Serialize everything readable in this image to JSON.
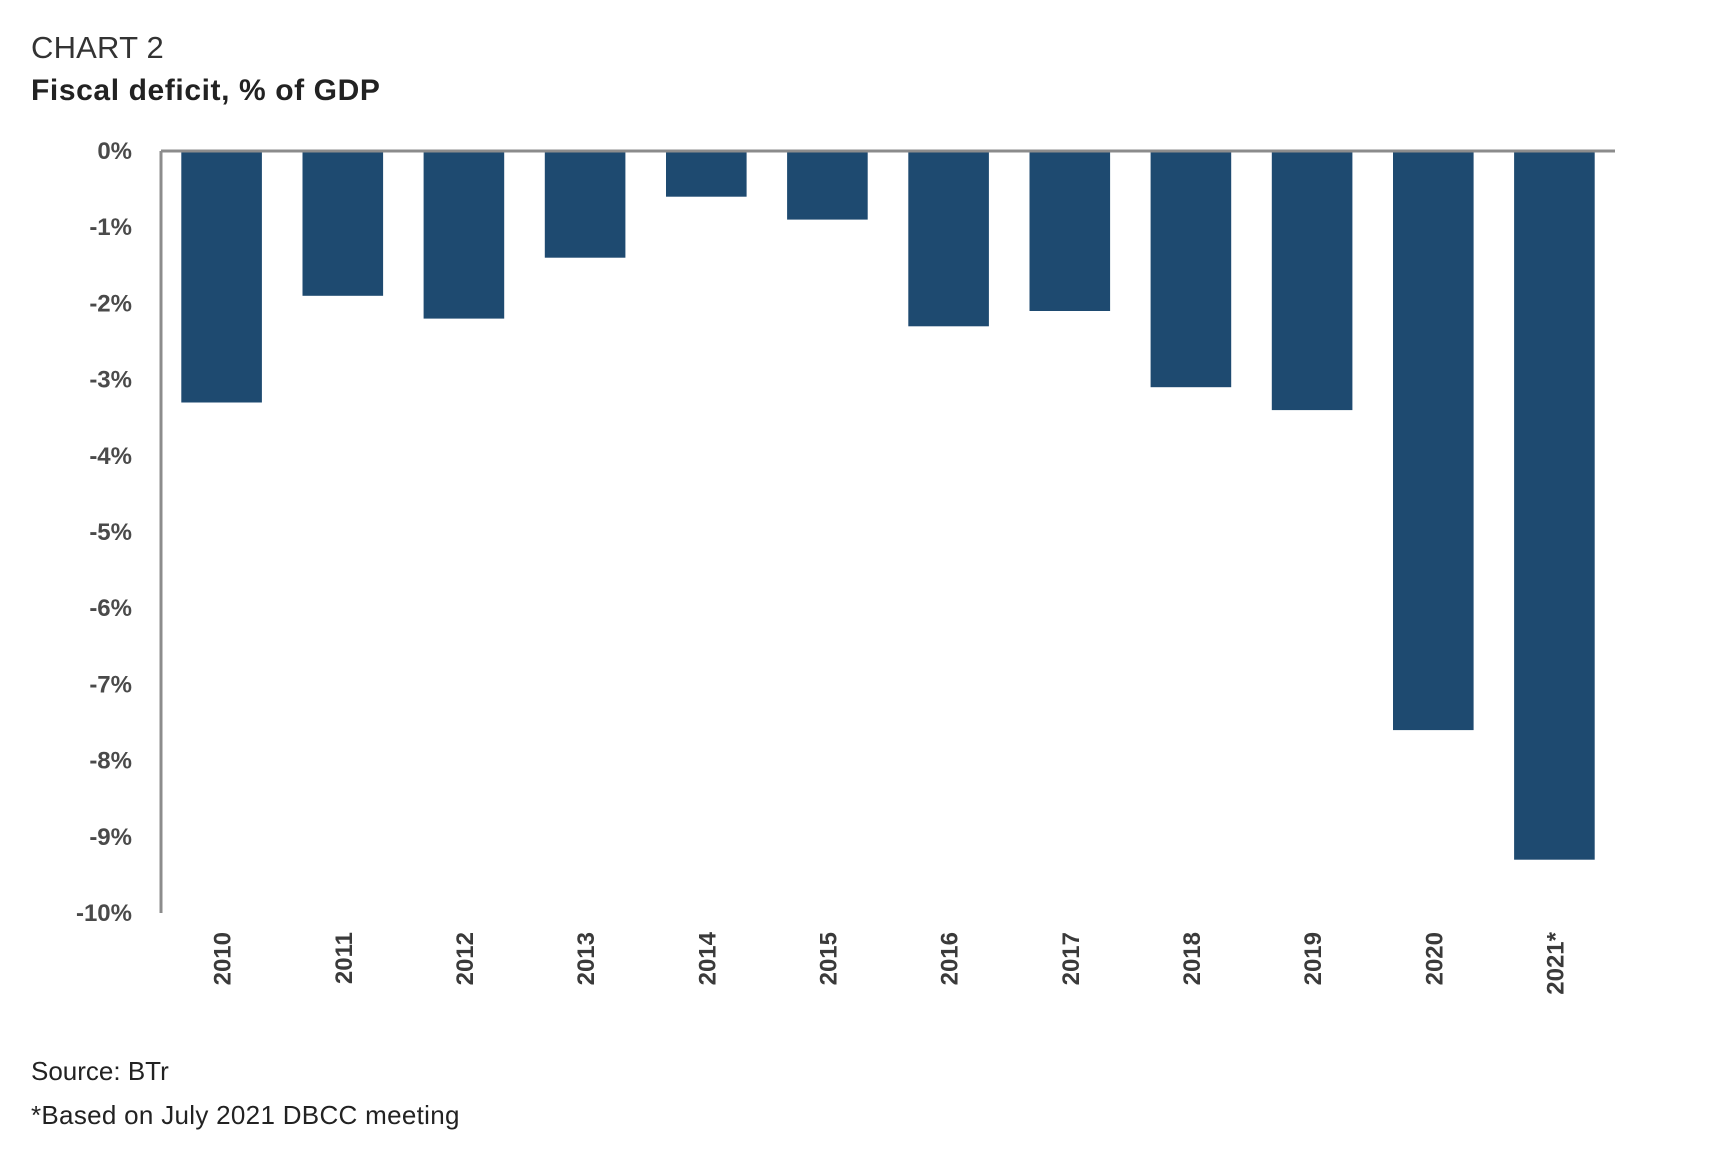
{
  "header": {
    "chart_label": "CHART 2",
    "title": "Fiscal deficit, % of GDP"
  },
  "footer": {
    "source": "Source: BTr",
    "note": "*Based on July 2021 DBCC meeting"
  },
  "colors": {
    "bar": "#1e4a70",
    "axis": "#8c8c8c"
  },
  "chart_data": {
    "type": "bar",
    "title": "Fiscal deficit, % of GDP",
    "subtitle": "CHART 2",
    "xlabel": "",
    "ylabel": "",
    "categories": [
      "2010",
      "2011",
      "2012",
      "2013",
      "2014",
      "2015",
      "2016",
      "2017",
      "2018",
      "2019",
      "2020",
      "2021*"
    ],
    "values": [
      -3.3,
      -1.9,
      -2.2,
      -1.4,
      -0.6,
      -0.9,
      -2.3,
      -2.1,
      -3.1,
      -3.4,
      -7.6,
      -9.3
    ],
    "unit": "% of GDP",
    "ylim": [
      -10,
      0
    ],
    "yticks": [
      0,
      -1,
      -2,
      -3,
      -4,
      -5,
      -6,
      -7,
      -8,
      -9,
      -10
    ],
    "ytick_labels": [
      "0%",
      "-1%",
      "-2%",
      "-3%",
      "-4%",
      "-5%",
      "-6%",
      "-7%",
      "-8%",
      "-9%",
      "-10%"
    ],
    "xtick_rotation": "vertical",
    "grid": false,
    "legend": "none",
    "source": "Source: BTr",
    "annotations": [
      "*Based on July 2021 DBCC meeting"
    ]
  }
}
